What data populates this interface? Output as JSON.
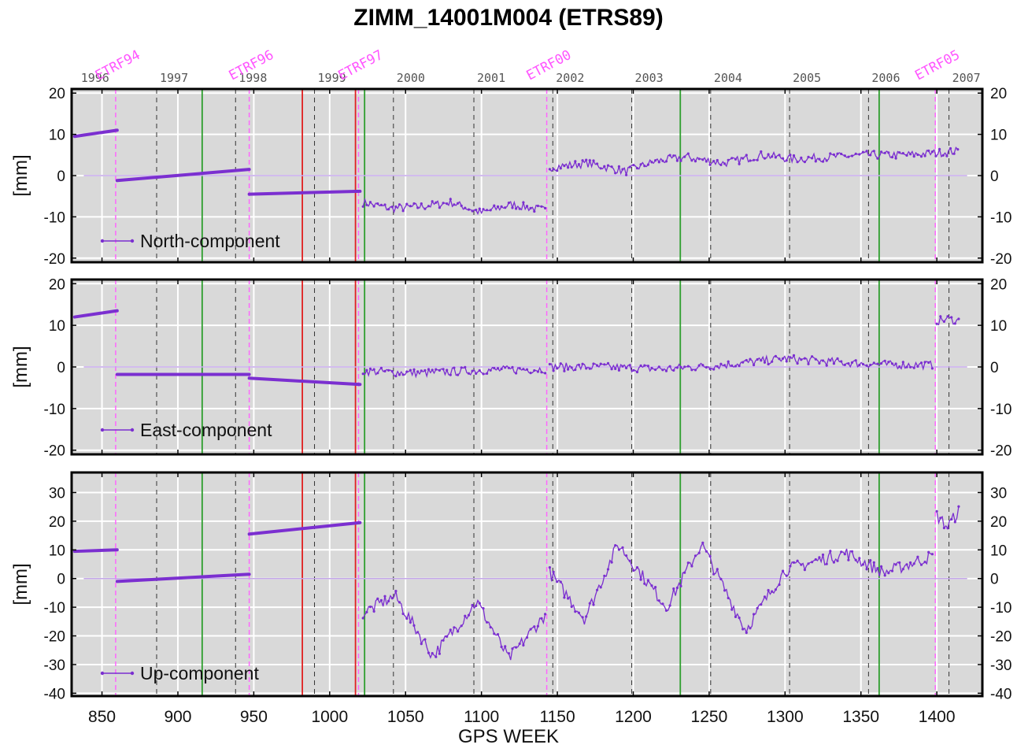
{
  "chart_data": {
    "type": "line",
    "title": "ZIMM_14001M004 (ETRS89)",
    "xlabel": "GPS WEEK",
    "xlim": [
      830,
      1430
    ],
    "x_ticks": [
      850,
      900,
      950,
      1000,
      1050,
      1100,
      1150,
      1200,
      1250,
      1300,
      1350,
      1400
    ],
    "year_labels": [
      {
        "label": "1996",
        "week": 834
      },
      {
        "label": "1997",
        "week": 886
      },
      {
        "label": "1998",
        "week": 938
      },
      {
        "label": "1999",
        "week": 990
      },
      {
        "label": "2000",
        "week": 1042
      },
      {
        "label": "2001",
        "week": 1095
      },
      {
        "label": "2002",
        "week": 1147
      },
      {
        "label": "2003",
        "week": 1199
      },
      {
        "label": "2004",
        "week": 1251
      },
      {
        "label": "2005",
        "week": 1303
      },
      {
        "label": "2006",
        "week": 1355
      },
      {
        "label": "2007",
        "week": 1408
      }
    ],
    "frame_markers": [
      {
        "label": "ETRF94",
        "week": 859
      },
      {
        "label": "ETRF96",
        "week": 947
      },
      {
        "label": "ETRF97",
        "week": 1019
      },
      {
        "label": "ETRF00",
        "week": 1143
      },
      {
        "label": "ETRF05",
        "week": 1399
      }
    ],
    "red_lines": [
      982,
      1017
    ],
    "green_lines": [
      916,
      1023,
      1231,
      1362
    ],
    "year_dashed_lines": [
      886,
      938,
      990,
      1042,
      1095,
      1147,
      1199,
      1251,
      1303,
      1355,
      1408
    ],
    "grid": true,
    "panels": [
      {
        "name": "North-component",
        "ylabel": "[mm]",
        "ylim": [
          -21,
          21
        ],
        "y_ticks": [
          -20,
          -10,
          0,
          10,
          20
        ],
        "segments": [
          {
            "x": [
              832,
              860
            ],
            "y": [
              9.5,
              11
            ]
          },
          {
            "x": [
              860,
              947
            ],
            "y": [
              -1.2,
              1.5
            ]
          },
          {
            "x": [
              947,
              1020
            ],
            "y": [
              -4.5,
              -3.8
            ]
          }
        ],
        "series": [
          {
            "x": [
              1022,
              1040,
              1060,
              1080,
              1100,
              1120,
              1143
            ],
            "y": [
              -6.5,
              -8,
              -7.5,
              -6.5,
              -9,
              -7,
              -8.5
            ]
          },
          {
            "x": [
              1145,
              1170,
              1195,
              1215,
              1235,
              1260,
              1285,
              1305,
              1330,
              1355,
              1380,
              1400,
              1415
            ],
            "y": [
              2,
              3,
              1,
              3.5,
              4.5,
              3,
              5,
              4,
              4.5,
              5,
              5,
              5.5,
              6
            ]
          }
        ]
      },
      {
        "name": "East-component",
        "ylabel": "[mm]",
        "ylim": [
          -21,
          21
        ],
        "y_ticks": [
          -20,
          -10,
          0,
          10,
          20
        ],
        "segments": [
          {
            "x": [
              832,
              860
            ],
            "y": [
              12,
              13.5
            ]
          },
          {
            "x": [
              860,
              947
            ],
            "y": [
              -1.8,
              -1.8
            ]
          },
          {
            "x": [
              947,
              1020
            ],
            "y": [
              -2.7,
              -4.2
            ]
          }
        ],
        "series": [
          {
            "x": [
              1022,
              1060,
              1100,
              1143
            ],
            "y": [
              -1,
              -1.5,
              -0.8,
              -0.5
            ]
          },
          {
            "x": [
              1145,
              1180,
              1220,
              1260,
              1300,
              1340,
              1370,
              1398
            ],
            "y": [
              0,
              0,
              -0.5,
              0.5,
              2,
              1,
              0.5,
              0.5
            ]
          },
          {
            "x": [
              1400,
              1407,
              1415
            ],
            "y": [
              11,
              11.5,
              11
            ]
          }
        ]
      },
      {
        "name": "Up-component",
        "ylabel": "[mm]",
        "ylim": [
          -41,
          37
        ],
        "y_ticks": [
          -40,
          -30,
          -20,
          -10,
          0,
          10,
          20,
          30
        ],
        "segments": [
          {
            "x": [
              832,
              860
            ],
            "y": [
              9.5,
              10
            ]
          },
          {
            "x": [
              860,
              947
            ],
            "y": [
              -1,
              1.5
            ]
          },
          {
            "x": [
              947,
              1020
            ],
            "y": [
              15.5,
              19.5
            ]
          }
        ],
        "series": [
          {
            "x": [
              1022,
              1043,
              1068,
              1097,
              1118,
              1143
            ],
            "y": [
              -12,
              -6,
              -27,
              -8,
              -28,
              -12
            ]
          },
          {
            "x": [
              1145,
              1168,
              1190,
              1222,
              1245,
              1274,
              1300,
              1340,
              1365,
              1398
            ],
            "y": [
              2,
              -14,
              12,
              -10,
              12,
              -18,
              3,
              9,
              2,
              8
            ]
          },
          {
            "x": [
              1400,
              1407,
              1415
            ],
            "y": [
              22,
              18,
              24
            ]
          }
        ]
      }
    ]
  }
}
